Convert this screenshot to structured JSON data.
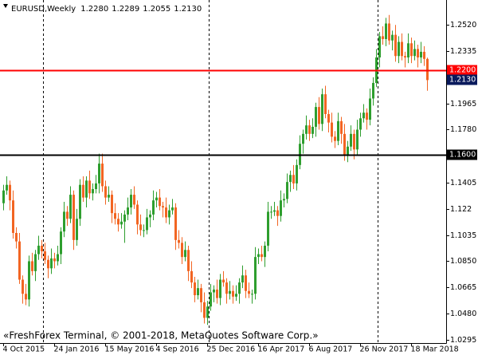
{
  "chart_data": {
    "type": "candlestick",
    "symbol": "EURUSD,Weekly",
    "quote": [
      {
        "value": 1.228,
        "label": "1.2280"
      },
      {
        "value": 1.2289,
        "label": "1.2289"
      },
      {
        "value": 1.2055,
        "label": "1.2055"
      },
      {
        "value": 1.213,
        "label": "1.2130"
      }
    ],
    "copyright": "«FreshForex Terminal, © 2001-2018, MetaQuotes Software Corp.»",
    "up_color": "#2e9e2e",
    "down_color": "#f26522",
    "ylim": [
      1.0272,
      1.2696
    ],
    "yticks": [
      {
        "value": 1.252,
        "label": "1.2520"
      },
      1.2335,
      1.1965,
      {
        "value": 1.178,
        "label": "1.1780"
      },
      1.1405,
      1.122,
      1.1035,
      {
        "value": 1.085,
        "label": "1.0850"
      },
      1.0665,
      {
        "value": 1.048,
        "label": "1.0480"
      },
      1.0295
    ],
    "xticks": [
      {
        "value": 0,
        "label": "4 Oct 2015"
      },
      {
        "value": 16,
        "label": "24 Jan 2016"
      },
      {
        "value": 32,
        "label": "15 May 2016"
      },
      {
        "value": 48,
        "label": "4 Sep 2016"
      },
      {
        "value": 64,
        "label": "25 Dec 2016"
      },
      {
        "value": 80,
        "label": "16 Apr 2017"
      },
      {
        "value": 96,
        "label": "6 Aug 2017"
      },
      {
        "value": 112,
        "label": "26 Nov 2017"
      },
      {
        "value": 128,
        "label": "18 Mar 2018"
      }
    ],
    "hlines": [
      {
        "value": 1.22,
        "label": "1.2200",
        "color": "#ff0000"
      },
      {
        "value": 1.16,
        "label": "1.1600",
        "color": "#000000"
      }
    ],
    "current_price": {
      "value": 1.213,
      "label": "1.2130",
      "color": "#0a1a5c"
    },
    "candles": [
      [
        1.126,
        1.139,
        1.121,
        1.135
      ],
      [
        1.135,
        1.145,
        1.132,
        1.139
      ],
      [
        1.139,
        1.142,
        1.121,
        1.128
      ],
      [
        1.128,
        1.135,
        1.101,
        1.105
      ],
      [
        1.105,
        1.109,
        1.094,
        1.099
      ],
      [
        1.099,
        1.105,
        1.069,
        1.072
      ],
      [
        1.072,
        1.075,
        1.055,
        1.062
      ],
      [
        1.062,
        1.069,
        1.054,
        1.058
      ],
      [
        1.058,
        1.089,
        1.053,
        1.085
      ],
      [
        1.085,
        1.091,
        1.075,
        1.078
      ],
      [
        1.078,
        1.093,
        1.071,
        1.09
      ],
      [
        1.09,
        1.103,
        1.086,
        1.096
      ],
      [
        1.096,
        1.1,
        1.087,
        1.092
      ],
      [
        1.092,
        1.098,
        1.083,
        1.086
      ],
      [
        1.086,
        1.089,
        1.073,
        1.08
      ],
      [
        1.08,
        1.094,
        1.076,
        1.087
      ],
      [
        1.087,
        1.091,
        1.08,
        1.085
      ],
      [
        1.085,
        1.096,
        1.082,
        1.09
      ],
      [
        1.09,
        1.109,
        1.083,
        1.106
      ],
      [
        1.106,
        1.127,
        1.102,
        1.12
      ],
      [
        1.12,
        1.124,
        1.11,
        1.115
      ],
      [
        1.115,
        1.138,
        1.112,
        1.132
      ],
      [
        1.132,
        1.135,
        1.093,
        1.1
      ],
      [
        1.1,
        1.122,
        1.096,
        1.115
      ],
      [
        1.115,
        1.143,
        1.11,
        1.139
      ],
      [
        1.139,
        1.145,
        1.127,
        1.13
      ],
      [
        1.13,
        1.145,
        1.123,
        1.142
      ],
      [
        1.142,
        1.149,
        1.129,
        1.133
      ],
      [
        1.133,
        1.14,
        1.128,
        1.136
      ],
      [
        1.136,
        1.146,
        1.133,
        1.14
      ],
      [
        1.14,
        1.161,
        1.133,
        1.154
      ],
      [
        1.154,
        1.161,
        1.134,
        1.138
      ],
      [
        1.138,
        1.142,
        1.125,
        1.13
      ],
      [
        1.13,
        1.138,
        1.127,
        1.132
      ],
      [
        1.132,
        1.135,
        1.112,
        1.119
      ],
      [
        1.119,
        1.126,
        1.111,
        1.115
      ],
      [
        1.115,
        1.119,
        1.106,
        1.111
      ],
      [
        1.111,
        1.119,
        1.108,
        1.113
      ],
      [
        1.113,
        1.121,
        1.098,
        1.118
      ],
      [
        1.118,
        1.13,
        1.114,
        1.123
      ],
      [
        1.123,
        1.136,
        1.118,
        1.132
      ],
      [
        1.132,
        1.138,
        1.122,
        1.125
      ],
      [
        1.125,
        1.128,
        1.104,
        1.111
      ],
      [
        1.111,
        1.118,
        1.103,
        1.107
      ],
      [
        1.107,
        1.111,
        1.102,
        1.107
      ],
      [
        1.107,
        1.122,
        1.104,
        1.116
      ],
      [
        1.116,
        1.121,
        1.109,
        1.118
      ],
      [
        1.118,
        1.135,
        1.114,
        1.128
      ],
      [
        1.128,
        1.134,
        1.123,
        1.13
      ],
      [
        1.13,
        1.136,
        1.121,
        1.124
      ],
      [
        1.124,
        1.127,
        1.116,
        1.123
      ],
      [
        1.123,
        1.13,
        1.112,
        1.116
      ],
      [
        1.116,
        1.125,
        1.111,
        1.121
      ],
      [
        1.121,
        1.129,
        1.118,
        1.123
      ],
      [
        1.123,
        1.126,
        1.093,
        1.1
      ],
      [
        1.1,
        1.107,
        1.094,
        1.098
      ],
      [
        1.098,
        1.102,
        1.083,
        1.088
      ],
      [
        1.088,
        1.099,
        1.085,
        1.093
      ],
      [
        1.093,
        1.096,
        1.071,
        1.078
      ],
      [
        1.078,
        1.085,
        1.066,
        1.07
      ],
      [
        1.07,
        1.074,
        1.056,
        1.061
      ],
      [
        1.061,
        1.072,
        1.058,
        1.066
      ],
      [
        1.066,
        1.069,
        1.049,
        1.056
      ],
      [
        1.056,
        1.063,
        1.041,
        1.045
      ],
      [
        1.045,
        1.057,
        1.04,
        1.053
      ],
      [
        1.053,
        1.069,
        1.05,
        1.063
      ],
      [
        1.063,
        1.068,
        1.056,
        1.065
      ],
      [
        1.065,
        1.072,
        1.055,
        1.059
      ],
      [
        1.059,
        1.076,
        1.054,
        1.072
      ],
      [
        1.072,
        1.078,
        1.067,
        1.07
      ],
      [
        1.07,
        1.073,
        1.055,
        1.062
      ],
      [
        1.062,
        1.071,
        1.058,
        1.064
      ],
      [
        1.064,
        1.068,
        1.055,
        1.06
      ],
      [
        1.06,
        1.068,
        1.057,
        1.062
      ],
      [
        1.062,
        1.073,
        1.055,
        1.07
      ],
      [
        1.07,
        1.082,
        1.066,
        1.075
      ],
      [
        1.075,
        1.079,
        1.059,
        1.064
      ],
      [
        1.064,
        1.07,
        1.059,
        1.062
      ],
      [
        1.062,
        1.065,
        1.055,
        1.062
      ],
      [
        1.062,
        1.095,
        1.058,
        1.088
      ],
      [
        1.088,
        1.094,
        1.083,
        1.09
      ],
      [
        1.09,
        1.096,
        1.085,
        1.088
      ],
      [
        1.088,
        1.099,
        1.081,
        1.096
      ],
      [
        1.096,
        1.127,
        1.092,
        1.12
      ],
      [
        1.12,
        1.124,
        1.115,
        1.12
      ],
      [
        1.12,
        1.127,
        1.117,
        1.121
      ],
      [
        1.121,
        1.124,
        1.11,
        1.117
      ],
      [
        1.117,
        1.135,
        1.113,
        1.128
      ],
      [
        1.128,
        1.133,
        1.123,
        1.129
      ],
      [
        1.129,
        1.147,
        1.126,
        1.141
      ],
      [
        1.141,
        1.149,
        1.134,
        1.146
      ],
      [
        1.146,
        1.153,
        1.136,
        1.14
      ],
      [
        1.14,
        1.157,
        1.135,
        1.153
      ],
      [
        1.153,
        1.174,
        1.15,
        1.168
      ],
      [
        1.168,
        1.178,
        1.161,
        1.175
      ],
      [
        1.175,
        1.188,
        1.171,
        1.181
      ],
      [
        1.181,
        1.185,
        1.17,
        1.175
      ],
      [
        1.175,
        1.186,
        1.172,
        1.18
      ],
      [
        1.18,
        1.197,
        1.173,
        1.194
      ],
      [
        1.194,
        1.201,
        1.178,
        1.182
      ],
      [
        1.182,
        1.207,
        1.177,
        1.203
      ],
      [
        1.203,
        1.209,
        1.186,
        1.189
      ],
      [
        1.189,
        1.192,
        1.176,
        1.183
      ],
      [
        1.183,
        1.19,
        1.169,
        1.173
      ],
      [
        1.173,
        1.177,
        1.165,
        1.17
      ],
      [
        1.17,
        1.19,
        1.167,
        1.184
      ],
      [
        1.184,
        1.187,
        1.168,
        1.175
      ],
      [
        1.175,
        1.182,
        1.156,
        1.16
      ],
      [
        1.16,
        1.17,
        1.155,
        1.166
      ],
      [
        1.166,
        1.181,
        1.163,
        1.175
      ],
      [
        1.175,
        1.178,
        1.157,
        1.164
      ],
      [
        1.164,
        1.185,
        1.16,
        1.178
      ],
      [
        1.178,
        1.19,
        1.173,
        1.186
      ],
      [
        1.186,
        1.196,
        1.183,
        1.19
      ],
      [
        1.19,
        1.193,
        1.178,
        1.185
      ],
      [
        1.185,
        1.207,
        1.181,
        1.2
      ],
      [
        1.2,
        1.215,
        1.195,
        1.211
      ],
      [
        1.211,
        1.235,
        1.208,
        1.229
      ],
      [
        1.229,
        1.247,
        1.222,
        1.244
      ],
      [
        1.244,
        1.251,
        1.238,
        1.242
      ],
      [
        1.242,
        1.257,
        1.237,
        1.253
      ],
      [
        1.253,
        1.259,
        1.238,
        1.241
      ],
      [
        1.241,
        1.248,
        1.234,
        1.245
      ],
      [
        1.245,
        1.252,
        1.226,
        1.23
      ],
      [
        1.23,
        1.244,
        1.225,
        1.24
      ],
      [
        1.24,
        1.246,
        1.227,
        1.23
      ],
      [
        1.23,
        1.233,
        1.222,
        1.229
      ],
      [
        1.229,
        1.246,
        1.225,
        1.239
      ],
      [
        1.239,
        1.243,
        1.225,
        1.23
      ],
      [
        1.23,
        1.241,
        1.227,
        1.235
      ],
      [
        1.235,
        1.238,
        1.222,
        1.229
      ],
      [
        1.229,
        1.24,
        1.225,
        1.233
      ],
      [
        1.233,
        1.237,
        1.223,
        1.228
      ],
      [
        1.228,
        1.2289,
        1.2055,
        1.213
      ]
    ]
  }
}
